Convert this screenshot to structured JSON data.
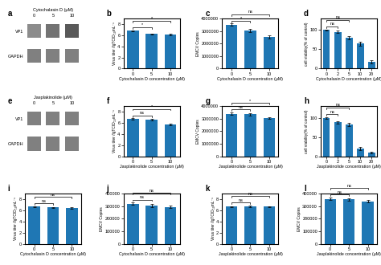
{
  "chart_data": [
    {
      "type": "blot",
      "title": "a",
      "xlabel": "Cytochalasin D (μM)",
      "categories": [
        "0",
        "5",
        "10"
      ],
      "rows": [
        "VP1",
        "GAPDH"
      ],
      "cells": [
        [
          0.55,
          0.45,
          0.35
        ],
        [
          0.5,
          0.5,
          0.5
        ]
      ]
    },
    {
      "type": "bar",
      "title": "b",
      "xlabel": "Cytochalasin D concentration (μM)",
      "ylabel": "Virus titer /lgTCID₅₀mL⁻¹",
      "categories": [
        "0",
        "5",
        "10"
      ],
      "values": [
        6.8,
        6.2,
        6.1
      ],
      "errors": [
        0.12,
        0.1,
        0.1
      ],
      "ylim": [
        0,
        9
      ],
      "yticks": [
        0,
        2,
        4,
        6,
        8
      ],
      "annotations": [
        {
          "text": "*",
          "categories": [
            "0",
            "5"
          ]
        },
        {
          "text": "*",
          "categories": [
            "0",
            "10"
          ]
        }
      ]
    },
    {
      "type": "bar",
      "title": "c",
      "xlabel": "Cytochalasin D concentration (μM)",
      "ylabel": "EMCV Copies",
      "categories": [
        "0",
        "5",
        "10"
      ],
      "values": [
        3500000,
        3050000,
        2550000
      ],
      "errors": [
        90000,
        130000,
        120000
      ],
      "ylim": [
        0,
        4000000
      ],
      "yticks": [
        0,
        1000000,
        2000000,
        3000000,
        4000000
      ],
      "annotations": [
        {
          "text": "*",
          "categories": [
            "0",
            "5"
          ]
        },
        {
          "text": "ns",
          "categories": [
            "0",
            "10"
          ]
        }
      ]
    },
    {
      "type": "bar",
      "title": "d",
      "xlabel": "Cytochalasin D concentration (μM)",
      "ylabel": "cell viability(% of control)",
      "categories": [
        "0",
        "2",
        "5",
        "10",
        "20"
      ],
      "values": [
        100,
        95,
        80,
        65,
        18
      ],
      "errors": [
        2,
        3,
        4,
        5,
        4
      ],
      "ylim": [
        0,
        130
      ],
      "yticks": [
        0,
        50,
        100
      ],
      "annotations": [
        {
          "text": "ns",
          "categories": [
            "0",
            "2"
          ]
        },
        {
          "text": "ns",
          "categories": [
            "0",
            "5"
          ]
        }
      ]
    },
    {
      "type": "blot",
      "title": "e",
      "xlabel": "Jasplakinolide (μM)",
      "categories": [
        "0",
        "5",
        "10"
      ],
      "rows": [
        "VP1",
        "GAPDH"
      ],
      "cells": [
        [
          0.5,
          0.5,
          0.5
        ],
        [
          0.5,
          0.5,
          0.5
        ]
      ]
    },
    {
      "type": "bar",
      "title": "f",
      "xlabel": "Jasplakinolide concentration (μM)",
      "ylabel": "Virus titer /lgTCID₅₀mL⁻¹",
      "categories": [
        "0",
        "5",
        "10"
      ],
      "values": [
        6.7,
        6.6,
        5.7
      ],
      "errors": [
        0.1,
        0.12,
        0.18
      ],
      "ylim": [
        0,
        9
      ],
      "yticks": [
        0,
        2,
        4,
        6,
        8
      ],
      "annotations": [
        {
          "text": "ns",
          "categories": [
            "0",
            "5"
          ]
        },
        {
          "text": "*",
          "categories": [
            "0",
            "10"
          ]
        }
      ]
    },
    {
      "type": "bar",
      "title": "g",
      "xlabel": "Jasplakinolide concentration (μM)",
      "ylabel": "EMCV Copies",
      "categories": [
        "0",
        "5",
        "10"
      ],
      "values": [
        3400000,
        3350000,
        3050000
      ],
      "errors": [
        90000,
        110000,
        90000
      ],
      "ylim": [
        0,
        4000000
      ],
      "yticks": [
        0,
        1000000,
        2000000,
        3000000,
        4000000
      ],
      "annotations": [
        {
          "text": "ns",
          "categories": [
            "0",
            "5"
          ]
        },
        {
          "text": "*",
          "categories": [
            "0",
            "10"
          ]
        }
      ]
    },
    {
      "type": "bar",
      "title": "h",
      "xlabel": "Jasplakinolide concentration (μM)",
      "ylabel": "cell viability(% of control)",
      "categories": [
        "0",
        "2",
        "5",
        "10",
        "20"
      ],
      "values": [
        100,
        88,
        82,
        20,
        10
      ],
      "errors": [
        2,
        3,
        4,
        4,
        2
      ],
      "ylim": [
        0,
        130
      ],
      "yticks": [
        0,
        50,
        100
      ],
      "annotations": [
        {
          "text": "ns",
          "categories": [
            "0",
            "2"
          ]
        },
        {
          "text": "ns",
          "categories": [
            "0",
            "5"
          ]
        }
      ]
    },
    {
      "type": "bar",
      "title": "i",
      "xlabel": "Cytochalasin D concentration (μM)",
      "ylabel": "Virus titer /lgTCID₅₀mL⁻¹",
      "categories": [
        "0",
        "5",
        "10"
      ],
      "values": [
        6.7,
        6.55,
        6.45
      ],
      "errors": [
        0.07,
        0.09,
        0.13
      ],
      "ylim": [
        0,
        9
      ],
      "yticks": [
        0,
        2,
        4,
        6,
        8
      ],
      "annotations": [
        {
          "text": "ns",
          "categories": [
            "0",
            "5"
          ]
        },
        {
          "text": "ns",
          "categories": [
            "0",
            "10"
          ]
        }
      ]
    },
    {
      "type": "bar",
      "title": "j",
      "xlabel": "Cytochalasin D concentration (μM)",
      "ylabel": "EMCV Copies",
      "categories": [
        "0",
        "5",
        "10"
      ],
      "values": [
        320000,
        305000,
        295000
      ],
      "errors": [
        9000,
        11000,
        9000
      ],
      "ylim": [
        0,
        400000
      ],
      "yticks": [
        0,
        100000,
        200000,
        300000,
        400000
      ],
      "annotations": [
        {
          "text": "ns",
          "categories": [
            "0",
            "5"
          ]
        },
        {
          "text": "ns",
          "categories": [
            "0",
            "10"
          ]
        }
      ]
    },
    {
      "type": "bar",
      "title": "k",
      "xlabel": "Jasplakinolide concentration (μM)",
      "ylabel": "Virus titer /lgTCID₅₀mL⁻¹",
      "categories": [
        "0",
        "5",
        "10"
      ],
      "values": [
        6.7,
        6.75,
        6.7
      ],
      "errors": [
        0.09,
        0.11,
        0.09
      ],
      "ylim": [
        0,
        9
      ],
      "yticks": [
        0,
        2,
        4,
        6,
        8
      ],
      "annotations": [
        {
          "text": "ns",
          "categories": [
            "0",
            "5"
          ]
        },
        {
          "text": "ns",
          "categories": [
            "0",
            "10"
          ]
        }
      ]
    },
    {
      "type": "bar",
      "title": "l",
      "xlabel": "Jasplakinolide concentration (μM)",
      "ylabel": "EMCV Copies",
      "categories": [
        "0",
        "5",
        "10"
      ],
      "values": [
        360000,
        355000,
        340000
      ],
      "errors": [
        9000,
        11000,
        9000
      ],
      "ylim": [
        0,
        400000
      ],
      "yticks": [
        0,
        100000,
        200000,
        300000,
        400000
      ],
      "annotations": [
        {
          "text": "ns",
          "categories": [
            "0",
            "5"
          ]
        },
        {
          "text": "ns",
          "categories": [
            "0",
            "10"
          ]
        }
      ]
    }
  ]
}
